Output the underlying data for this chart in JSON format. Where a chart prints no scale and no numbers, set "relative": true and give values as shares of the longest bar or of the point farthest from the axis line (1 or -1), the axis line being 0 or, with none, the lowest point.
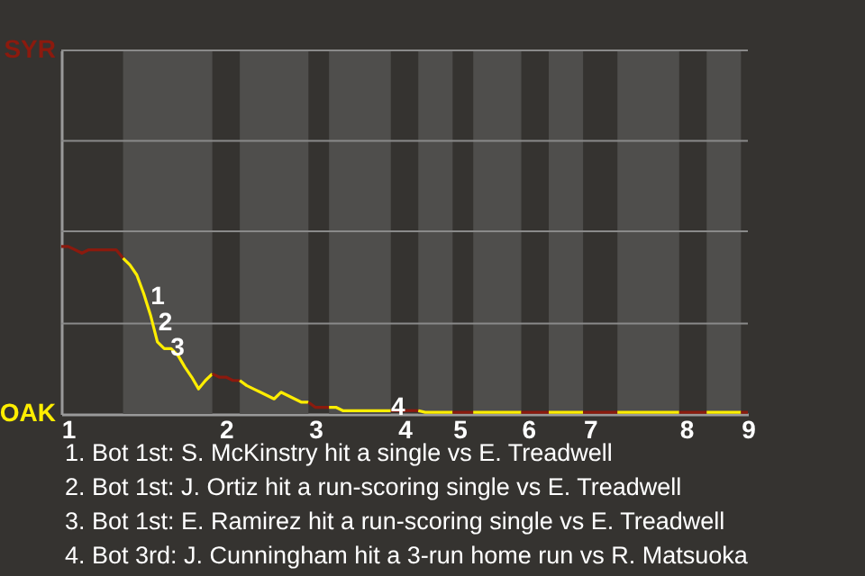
{
  "chart_data": {
    "type": "line",
    "relative": true,
    "categories": [
      null,
      "1",
      null,
      null,
      null,
      null,
      null,
      null,
      null,
      null,
      null,
      null,
      null,
      null,
      null,
      null,
      null,
      null,
      null,
      null,
      null,
      null,
      null,
      null,
      "2",
      null,
      null,
      null,
      null,
      null,
      null,
      null,
      null,
      null,
      null,
      null,
      null,
      "3",
      null,
      null,
      null,
      null,
      null,
      null,
      null,
      null,
      null,
      null,
      null,
      null,
      "4",
      null,
      null,
      null,
      null,
      null,
      null,
      null,
      "5",
      null,
      null,
      null,
      null,
      null,
      null,
      null,
      null,
      null,
      "6",
      null,
      null,
      null,
      null,
      null,
      null,
      null,
      null,
      "7",
      null,
      null,
      null,
      null,
      null,
      null,
      null,
      null,
      null,
      null,
      null,
      null,
      null,
      "8",
      null,
      null,
      null,
      null,
      null,
      null,
      null,
      null,
      "9"
    ],
    "series": [
      {
        "name": "SYR",
        "color": "#8b1a0e",
        "values": [
          1,
          1,
          0.98,
          0.96,
          0.98,
          0.98,
          0.98,
          0.98,
          0.98,
          0.93,
          null,
          null,
          null,
          null,
          null,
          null,
          null,
          null,
          null,
          null,
          null,
          null,
          null,
          null,
          null,
          null,
          null,
          null,
          null,
          null,
          null,
          null,
          null,
          null,
          null,
          null,
          null,
          null,
          null,
          null,
          null,
          null,
          null,
          null,
          null,
          null,
          null,
          null,
          null,
          null,
          null,
          null,
          null,
          null,
          null,
          null,
          null,
          null,
          null,
          null,
          null,
          null,
          null,
          null,
          null,
          null,
          null,
          null,
          null,
          null,
          null,
          null,
          null,
          null,
          null,
          null,
          null,
          null,
          null,
          null,
          null,
          null,
          null,
          null,
          null,
          null,
          null,
          null,
          null,
          null,
          null,
          null,
          null,
          null,
          null,
          null,
          null,
          null,
          null,
          null,
          null
        ]
      },
      {
        "name": "OAK",
        "color": "#ffee00",
        "values": [
          null,
          null,
          null,
          null,
          null,
          null,
          null,
          null,
          null,
          0.93,
          0.89,
          0.83,
          0.72,
          0.59,
          0.43,
          0.39,
          0.39,
          0.35,
          0.28,
          0.22,
          0.15,
          0.2,
          0.24,
          null,
          null,
          null,
          null,
          null,
          null,
          null,
          null,
          null,
          null,
          null,
          null,
          null,
          null,
          null,
          null,
          null,
          null,
          null,
          null,
          null,
          null,
          null,
          null,
          null,
          null,
          null,
          null,
          null,
          null,
          null,
          null,
          null,
          null,
          null,
          null,
          null,
          null,
          null,
          null,
          null,
          null,
          null,
          null,
          null,
          null,
          null,
          null,
          null,
          null,
          null,
          null,
          null,
          null,
          null,
          null,
          null,
          null,
          null,
          null,
          null,
          null,
          null,
          null,
          null,
          null,
          null,
          null,
          null,
          null,
          null,
          null,
          null,
          null,
          null,
          null,
          null,
          null
        ]
      },
      {
        "color": "#8c1a0e",
        "values": [
          null,
          null,
          null,
          null,
          null,
          null,
          null,
          null,
          null,
          null,
          null,
          null,
          null,
          null,
          null,
          null,
          null,
          null,
          null,
          null,
          null,
          null,
          0.24,
          0.22,
          0.22,
          0.2,
          0.2,
          null,
          null,
          null,
          null,
          null,
          null,
          null,
          null,
          null,
          null,
          null,
          null,
          null,
          null,
          null,
          null,
          null,
          null,
          null,
          null,
          null,
          null,
          null,
          null,
          null,
          null,
          null,
          null,
          null,
          null,
          null,
          null,
          null,
          null,
          null,
          null,
          null,
          null,
          null,
          null,
          null,
          null,
          null,
          null,
          null,
          null,
          null,
          null,
          null,
          null,
          null,
          null,
          null,
          null,
          null,
          null,
          null,
          null,
          null,
          null,
          null,
          null,
          null,
          null,
          null,
          null,
          null,
          null,
          null,
          null,
          null,
          null,
          null,
          null
        ]
      },
      {
        "color": "#ffed00",
        "values": [
          null,
          null,
          null,
          null,
          null,
          null,
          null,
          null,
          null,
          null,
          null,
          null,
          null,
          null,
          null,
          null,
          null,
          null,
          null,
          null,
          null,
          null,
          null,
          null,
          null,
          null,
          0.2,
          0.17,
          0.15,
          0.13,
          0.11,
          0.09,
          0.13,
          0.11,
          0.09,
          0.07,
          0.07,
          null,
          null,
          null,
          null,
          null,
          null,
          null,
          null,
          null,
          null,
          null,
          null,
          null,
          null,
          null,
          null,
          null,
          null,
          null,
          null,
          null,
          null,
          null,
          null,
          null,
          null,
          null,
          null,
          null,
          null,
          null,
          null,
          null,
          null,
          null,
          null,
          null,
          null,
          null,
          null,
          null,
          null,
          null,
          null,
          null,
          null,
          null,
          null,
          null,
          null,
          null,
          null,
          null,
          null,
          null,
          null,
          null,
          null,
          null,
          null,
          null,
          null,
          null,
          null
        ]
      },
      {
        "color": "#8b1b0e",
        "values": [
          null,
          null,
          null,
          null,
          null,
          null,
          null,
          null,
          null,
          null,
          null,
          null,
          null,
          null,
          null,
          null,
          null,
          null,
          null,
          null,
          null,
          null,
          null,
          null,
          null,
          null,
          null,
          null,
          null,
          null,
          null,
          null,
          null,
          null,
          null,
          null,
          0.07,
          0.04,
          0.04,
          0.04,
          null,
          null,
          null,
          null,
          null,
          null,
          null,
          null,
          null,
          null,
          null,
          null,
          null,
          null,
          null,
          null,
          null,
          null,
          null,
          null,
          null,
          null,
          null,
          null,
          null,
          null,
          null,
          null,
          null,
          null,
          null,
          null,
          null,
          null,
          null,
          null,
          null,
          null,
          null,
          null,
          null,
          null,
          null,
          null,
          null,
          null,
          null,
          null,
          null,
          null,
          null,
          null,
          null,
          null,
          null,
          null,
          null,
          null,
          null,
          null,
          null
        ]
      },
      {
        "color": "#ffef00",
        "values": [
          null,
          null,
          null,
          null,
          null,
          null,
          null,
          null,
          null,
          null,
          null,
          null,
          null,
          null,
          null,
          null,
          null,
          null,
          null,
          null,
          null,
          null,
          null,
          null,
          null,
          null,
          null,
          null,
          null,
          null,
          null,
          null,
          null,
          null,
          null,
          null,
          null,
          null,
          null,
          0.04,
          0.04,
          0.02,
          0.02,
          0.02,
          0.02,
          0.02,
          0.02,
          0.02,
          0.02,
          null,
          null,
          null,
          null,
          null,
          null,
          null,
          null,
          null,
          null,
          null,
          null,
          null,
          null,
          null,
          null,
          null,
          null,
          null,
          null,
          null,
          null,
          null,
          null,
          null,
          null,
          null,
          null,
          null,
          null,
          null,
          null,
          null,
          null,
          null,
          null,
          null,
          null,
          null,
          null,
          null,
          null,
          null,
          null,
          null,
          null,
          null,
          null,
          null,
          null,
          null,
          null
        ]
      },
      {
        "color": "#8b1a0f",
        "values": [
          null,
          null,
          null,
          null,
          null,
          null,
          null,
          null,
          null,
          null,
          null,
          null,
          null,
          null,
          null,
          null,
          null,
          null,
          null,
          null,
          null,
          null,
          null,
          null,
          null,
          null,
          null,
          null,
          null,
          null,
          null,
          null,
          null,
          null,
          null,
          null,
          null,
          null,
          null,
          null,
          null,
          null,
          null,
          null,
          null,
          null,
          null,
          null,
          0.02,
          0.02,
          0.02,
          0.02,
          0.02,
          null,
          null,
          null,
          null,
          null,
          null,
          null,
          null,
          null,
          null,
          null,
          null,
          null,
          null,
          null,
          null,
          null,
          null,
          null,
          null,
          null,
          null,
          null,
          null,
          null,
          null,
          null,
          null,
          null,
          null,
          null,
          null,
          null,
          null,
          null,
          null,
          null,
          null,
          null,
          null,
          null,
          null,
          null,
          null,
          null,
          null,
          null,
          null
        ]
      },
      {
        "color": "#feee00",
        "values": [
          null,
          null,
          null,
          null,
          null,
          null,
          null,
          null,
          null,
          null,
          null,
          null,
          null,
          null,
          null,
          null,
          null,
          null,
          null,
          null,
          null,
          null,
          null,
          null,
          null,
          null,
          null,
          null,
          null,
          null,
          null,
          null,
          null,
          null,
          null,
          null,
          null,
          null,
          null,
          null,
          null,
          null,
          null,
          null,
          null,
          null,
          null,
          null,
          null,
          null,
          null,
          null,
          0.02,
          0.01,
          0.01,
          0.01,
          0.01,
          0.01,
          null,
          null,
          null,
          null,
          null,
          null,
          null,
          null,
          null,
          null,
          null,
          null,
          null,
          null,
          null,
          null,
          null,
          null,
          null,
          null,
          null,
          null,
          null,
          null,
          null,
          null,
          null,
          null,
          null,
          null,
          null,
          null,
          null,
          null,
          null,
          null,
          null,
          null,
          null,
          null,
          null,
          null,
          null
        ]
      },
      {
        "color": "#8a1a0e",
        "values": [
          null,
          null,
          null,
          null,
          null,
          null,
          null,
          null,
          null,
          null,
          null,
          null,
          null,
          null,
          null,
          null,
          null,
          null,
          null,
          null,
          null,
          null,
          null,
          null,
          null,
          null,
          null,
          null,
          null,
          null,
          null,
          null,
          null,
          null,
          null,
          null,
          null,
          null,
          null,
          null,
          null,
          null,
          null,
          null,
          null,
          null,
          null,
          null,
          null,
          null,
          null,
          null,
          null,
          null,
          null,
          null,
          null,
          0.01,
          0.01,
          0.01,
          0.01,
          null,
          null,
          null,
          null,
          null,
          null,
          null,
          null,
          null,
          null,
          null,
          null,
          null,
          null,
          null,
          null,
          null,
          null,
          null,
          null,
          null,
          null,
          null,
          null,
          null,
          null,
          null,
          null,
          null,
          null,
          null,
          null,
          null,
          null,
          null,
          null,
          null,
          null,
          null,
          null
        ]
      },
      {
        "color": "#ffee01",
        "values": [
          null,
          null,
          null,
          null,
          null,
          null,
          null,
          null,
          null,
          null,
          null,
          null,
          null,
          null,
          null,
          null,
          null,
          null,
          null,
          null,
          null,
          null,
          null,
          null,
          null,
          null,
          null,
          null,
          null,
          null,
          null,
          null,
          null,
          null,
          null,
          null,
          null,
          null,
          null,
          null,
          null,
          null,
          null,
          null,
          null,
          null,
          null,
          null,
          null,
          null,
          null,
          null,
          null,
          null,
          null,
          null,
          null,
          null,
          null,
          null,
          0.01,
          0.01,
          0.01,
          0.01,
          0.01,
          0.01,
          0.01,
          0.01,
          null,
          null,
          null,
          null,
          null,
          null,
          null,
          null,
          null,
          null,
          null,
          null,
          null,
          null,
          null,
          null,
          null,
          null,
          null,
          null,
          null,
          null,
          null,
          null,
          null,
          null,
          null,
          null,
          null,
          null,
          null,
          null,
          null
        ]
      },
      {
        "color": "#8b190e",
        "values": [
          null,
          null,
          null,
          null,
          null,
          null,
          null,
          null,
          null,
          null,
          null,
          null,
          null,
          null,
          null,
          null,
          null,
          null,
          null,
          null,
          null,
          null,
          null,
          null,
          null,
          null,
          null,
          null,
          null,
          null,
          null,
          null,
          null,
          null,
          null,
          null,
          null,
          null,
          null,
          null,
          null,
          null,
          null,
          null,
          null,
          null,
          null,
          null,
          null,
          null,
          null,
          null,
          null,
          null,
          null,
          null,
          null,
          null,
          null,
          null,
          null,
          null,
          null,
          null,
          null,
          null,
          null,
          0.01,
          0.01,
          0.01,
          0.01,
          0.01,
          null,
          null,
          null,
          null,
          null,
          null,
          null,
          null,
          null,
          null,
          null,
          null,
          null,
          null,
          null,
          null,
          null,
          null,
          null,
          null,
          null,
          null,
          null,
          null,
          null,
          null,
          null,
          null,
          null
        ]
      },
      {
        "color": "#ffec00",
        "values": [
          null,
          null,
          null,
          null,
          null,
          null,
          null,
          null,
          null,
          null,
          null,
          null,
          null,
          null,
          null,
          null,
          null,
          null,
          null,
          null,
          null,
          null,
          null,
          null,
          null,
          null,
          null,
          null,
          null,
          null,
          null,
          null,
          null,
          null,
          null,
          null,
          null,
          null,
          null,
          null,
          null,
          null,
          null,
          null,
          null,
          null,
          null,
          null,
          null,
          null,
          null,
          null,
          null,
          null,
          null,
          null,
          null,
          null,
          null,
          null,
          null,
          null,
          null,
          null,
          null,
          null,
          null,
          null,
          null,
          null,
          null,
          0.01,
          0.01,
          0.01,
          0.01,
          0.01,
          0.01,
          null,
          null,
          null,
          null,
          null,
          null,
          null,
          null,
          null,
          null,
          null,
          null,
          null,
          null,
          null,
          null,
          null,
          null,
          null,
          null,
          null,
          null,
          null,
          null
        ]
      },
      {
        "color": "#8b1a0d",
        "values": [
          null,
          null,
          null,
          null,
          null,
          null,
          null,
          null,
          null,
          null,
          null,
          null,
          null,
          null,
          null,
          null,
          null,
          null,
          null,
          null,
          null,
          null,
          null,
          null,
          null,
          null,
          null,
          null,
          null,
          null,
          null,
          null,
          null,
          null,
          null,
          null,
          null,
          null,
          null,
          null,
          null,
          null,
          null,
          null,
          null,
          null,
          null,
          null,
          null,
          null,
          null,
          null,
          null,
          null,
          null,
          null,
          null,
          null,
          null,
          null,
          null,
          null,
          null,
          null,
          null,
          null,
          null,
          null,
          null,
          null,
          null,
          null,
          null,
          null,
          null,
          null,
          0.01,
          0.01,
          0.01,
          0.01,
          0.01,
          0.01,
          null,
          null,
          null,
          null,
          null,
          null,
          null,
          null,
          null,
          null,
          null,
          null,
          null,
          null,
          null,
          null,
          null,
          null,
          null
        ]
      },
      {
        "color": "#feed00",
        "values": [
          null,
          null,
          null,
          null,
          null,
          null,
          null,
          null,
          null,
          null,
          null,
          null,
          null,
          null,
          null,
          null,
          null,
          null,
          null,
          null,
          null,
          null,
          null,
          null,
          null,
          null,
          null,
          null,
          null,
          null,
          null,
          null,
          null,
          null,
          null,
          null,
          null,
          null,
          null,
          null,
          null,
          null,
          null,
          null,
          null,
          null,
          null,
          null,
          null,
          null,
          null,
          null,
          null,
          null,
          null,
          null,
          null,
          null,
          null,
          null,
          null,
          null,
          null,
          null,
          null,
          null,
          null,
          null,
          null,
          null,
          null,
          null,
          null,
          null,
          null,
          null,
          null,
          null,
          null,
          null,
          null,
          0.01,
          0.01,
          0.01,
          0.01,
          0.01,
          0.01,
          0.01,
          0.01,
          0.01,
          0.01,
          null,
          null,
          null,
          null,
          null,
          null,
          null,
          null,
          null,
          null
        ]
      },
      {
        "color": "#8c1b0e",
        "values": [
          null,
          null,
          null,
          null,
          null,
          null,
          null,
          null,
          null,
          null,
          null,
          null,
          null,
          null,
          null,
          null,
          null,
          null,
          null,
          null,
          null,
          null,
          null,
          null,
          null,
          null,
          null,
          null,
          null,
          null,
          null,
          null,
          null,
          null,
          null,
          null,
          null,
          null,
          null,
          null,
          null,
          null,
          null,
          null,
          null,
          null,
          null,
          null,
          null,
          null,
          null,
          null,
          null,
          null,
          null,
          null,
          null,
          null,
          null,
          null,
          null,
          null,
          null,
          null,
          null,
          null,
          null,
          null,
          null,
          null,
          null,
          null,
          null,
          null,
          null,
          null,
          null,
          null,
          null,
          null,
          null,
          null,
          null,
          null,
          null,
          null,
          null,
          null,
          null,
          null,
          0.01,
          0.01,
          0.01,
          0.01,
          0.01,
          null,
          null,
          null,
          null,
          null,
          null
        ]
      },
      {
        "color": "#fff000",
        "values": [
          null,
          null,
          null,
          null,
          null,
          null,
          null,
          null,
          null,
          null,
          null,
          null,
          null,
          null,
          null,
          null,
          null,
          null,
          null,
          null,
          null,
          null,
          null,
          null,
          null,
          null,
          null,
          null,
          null,
          null,
          null,
          null,
          null,
          null,
          null,
          null,
          null,
          null,
          null,
          null,
          null,
          null,
          null,
          null,
          null,
          null,
          null,
          null,
          null,
          null,
          null,
          null,
          null,
          null,
          null,
          null,
          null,
          null,
          null,
          null,
          null,
          null,
          null,
          null,
          null,
          null,
          null,
          null,
          null,
          null,
          null,
          null,
          null,
          null,
          null,
          null,
          null,
          null,
          null,
          null,
          null,
          null,
          null,
          null,
          null,
          null,
          null,
          null,
          null,
          null,
          null,
          null,
          null,
          null,
          0.01,
          0.01,
          0.01,
          0.01,
          0.01,
          0.01,
          null
        ]
      },
      {
        "color": "#8a1b0e",
        "values": [
          null,
          null,
          null,
          null,
          null,
          null,
          null,
          null,
          null,
          null,
          null,
          null,
          null,
          null,
          null,
          null,
          null,
          null,
          null,
          null,
          null,
          null,
          null,
          null,
          null,
          null,
          null,
          null,
          null,
          null,
          null,
          null,
          null,
          null,
          null,
          null,
          null,
          null,
          null,
          null,
          null,
          null,
          null,
          null,
          null,
          null,
          null,
          null,
          null,
          null,
          null,
          null,
          null,
          null,
          null,
          null,
          null,
          null,
          null,
          null,
          null,
          null,
          null,
          null,
          null,
          null,
          null,
          null,
          null,
          null,
          null,
          null,
          null,
          null,
          null,
          null,
          null,
          null,
          null,
          null,
          null,
          null,
          null,
          null,
          null,
          null,
          null,
          null,
          null,
          null,
          null,
          null,
          null,
          null,
          null,
          null,
          null,
          null,
          null,
          0.01,
          0.01
        ]
      }
    ],
    "ref_lines": [
      {
        "axis": "y",
        "value": 0.54
      },
      {
        "axis": "y",
        "value": 1.09
      },
      {
        "axis": "y",
        "value": 1.63
      }
    ],
    "annotations": [
      "1",
      "2",
      "3",
      "4",
      "1. Bot 1st: S. McKinstry hit a single vs E. Treadwell",
      "2. Bot 1st: J. Ortiz hit a run-scoring single vs E. Treadwell",
      "3. Bot 1st: E. Ramirez hit a run-scoring single vs E. Treadwell",
      "4. Bot 3rd: J. Cunningham hit a 3-run home run vs R. Matsuoka"
    ]
  }
}
